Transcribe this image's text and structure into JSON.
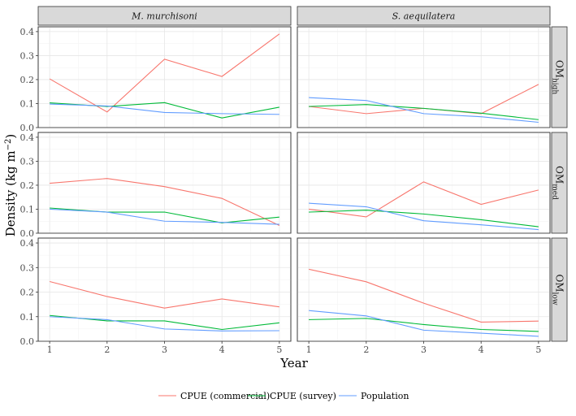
{
  "chart_data": {
    "type": "line",
    "facets": {
      "columns": [
        "M. murchisoni",
        "S. aequilatera"
      ],
      "rows": [
        {
          "base": "OM",
          "sub": "high"
        },
        {
          "base": "OM",
          "sub": "med"
        },
        {
          "base": "OM",
          "sub": "low"
        }
      ]
    },
    "x": [
      1,
      2,
      3,
      4,
      5
    ],
    "xlim": [
      0.8,
      5.2
    ],
    "ylim": [
      0,
      0.42
    ],
    "y_ticks": [
      0.0,
      0.1,
      0.2,
      0.3,
      0.4
    ],
    "y_tick_labels": [
      "0.0",
      "0.1",
      "0.2",
      "0.3",
      "0.4"
    ],
    "xlabel": "Year",
    "ylabel": {
      "main": "Density (kg m",
      "sup": "−2",
      "close": ")"
    },
    "legend": {
      "position": "bottom",
      "entries": [
        {
          "name": "CPUE (commercial)",
          "color": "#F8766D"
        },
        {
          "name": "CPUE (survey)",
          "color": "#00BA38"
        },
        {
          "name": "Population",
          "color": "#619CFF"
        }
      ]
    },
    "grid": true,
    "panels": [
      {
        "row": 0,
        "col": 0,
        "series": [
          {
            "name": "CPUE (commercial)",
            "values": [
              0.203,
              0.065,
              0.285,
              0.213,
              0.39
            ]
          },
          {
            "name": "CPUE (survey)",
            "values": [
              0.103,
              0.088,
              0.104,
              0.04,
              0.085
            ]
          },
          {
            "name": "Population",
            "values": [
              0.098,
              0.09,
              0.063,
              0.058,
              0.055
            ]
          }
        ]
      },
      {
        "row": 0,
        "col": 1,
        "series": [
          {
            "name": "CPUE (commercial)",
            "values": [
              0.088,
              0.058,
              0.08,
              0.058,
              0.18
            ]
          },
          {
            "name": "CPUE (survey)",
            "values": [
              0.088,
              0.096,
              0.08,
              0.06,
              0.033
            ]
          },
          {
            "name": "Population",
            "values": [
              0.125,
              0.113,
              0.058,
              0.045,
              0.022
            ]
          }
        ]
      },
      {
        "row": 1,
        "col": 0,
        "series": [
          {
            "name": "CPUE (commercial)",
            "values": [
              0.208,
              0.228,
              0.194,
              0.145,
              0.032
            ]
          },
          {
            "name": "CPUE (survey)",
            "values": [
              0.105,
              0.088,
              0.088,
              0.043,
              0.067
            ]
          },
          {
            "name": "Population",
            "values": [
              0.1,
              0.088,
              0.05,
              0.045,
              0.037
            ]
          }
        ]
      },
      {
        "row": 1,
        "col": 1,
        "series": [
          {
            "name": "CPUE (commercial)",
            "values": [
              0.1,
              0.068,
              0.214,
              0.12,
              0.18
            ]
          },
          {
            "name": "CPUE (survey)",
            "values": [
              0.088,
              0.096,
              0.08,
              0.056,
              0.027
            ]
          },
          {
            "name": "Population",
            "values": [
              0.125,
              0.11,
              0.052,
              0.035,
              0.015
            ]
          }
        ]
      },
      {
        "row": 2,
        "col": 0,
        "series": [
          {
            "name": "CPUE (commercial)",
            "values": [
              0.243,
              0.182,
              0.135,
              0.172,
              0.14
            ]
          },
          {
            "name": "CPUE (survey)",
            "values": [
              0.105,
              0.083,
              0.083,
              0.048,
              0.075
            ]
          },
          {
            "name": "Population",
            "values": [
              0.1,
              0.088,
              0.05,
              0.042,
              0.043
            ]
          }
        ]
      },
      {
        "row": 2,
        "col": 1,
        "series": [
          {
            "name": "CPUE (commercial)",
            "values": [
              0.293,
              0.242,
              0.155,
              0.078,
              0.082
            ]
          },
          {
            "name": "CPUE (survey)",
            "values": [
              0.088,
              0.093,
              0.068,
              0.048,
              0.04
            ]
          },
          {
            "name": "Population",
            "values": [
              0.125,
              0.103,
              0.045,
              0.033,
              0.02
            ]
          }
        ]
      }
    ]
  }
}
